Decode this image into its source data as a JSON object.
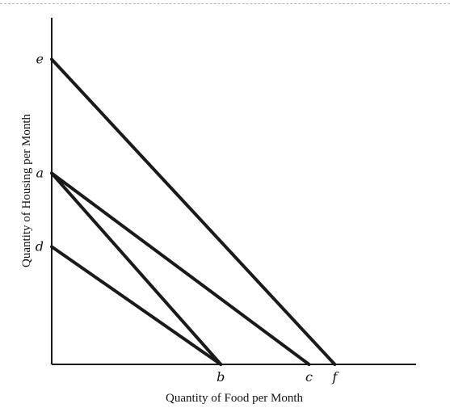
{
  "chart_data": {
    "type": "line",
    "title": "",
    "xlabel": "Quantity of Food per Month",
    "ylabel": "Quantity of Housing per Month",
    "xlim": [
      0,
      10
    ],
    "ylim": [
      0,
      10
    ],
    "x_tick_labels": [
      {
        "label": "b",
        "x": 4.6
      },
      {
        "label": "c",
        "x": 7.0
      },
      {
        "label": "f",
        "x": 7.7
      }
    ],
    "y_tick_labels": [
      {
        "label": "e",
        "y": 8.3
      },
      {
        "label": "a",
        "y": 5.2
      },
      {
        "label": "d",
        "y": 3.2
      }
    ],
    "series": [
      {
        "points": [
          [
            0,
            8.3
          ],
          [
            7.7,
            0
          ]
        ]
      },
      {
        "points": [
          [
            0,
            5.2
          ],
          [
            7.0,
            0
          ]
        ]
      },
      {
        "points": [
          [
            0,
            5.2
          ],
          [
            4.6,
            0
          ]
        ]
      },
      {
        "points": [
          [
            0,
            3.2
          ],
          [
            4.6,
            0
          ]
        ]
      }
    ],
    "grid": false,
    "line_color": "#1a1a1a"
  }
}
